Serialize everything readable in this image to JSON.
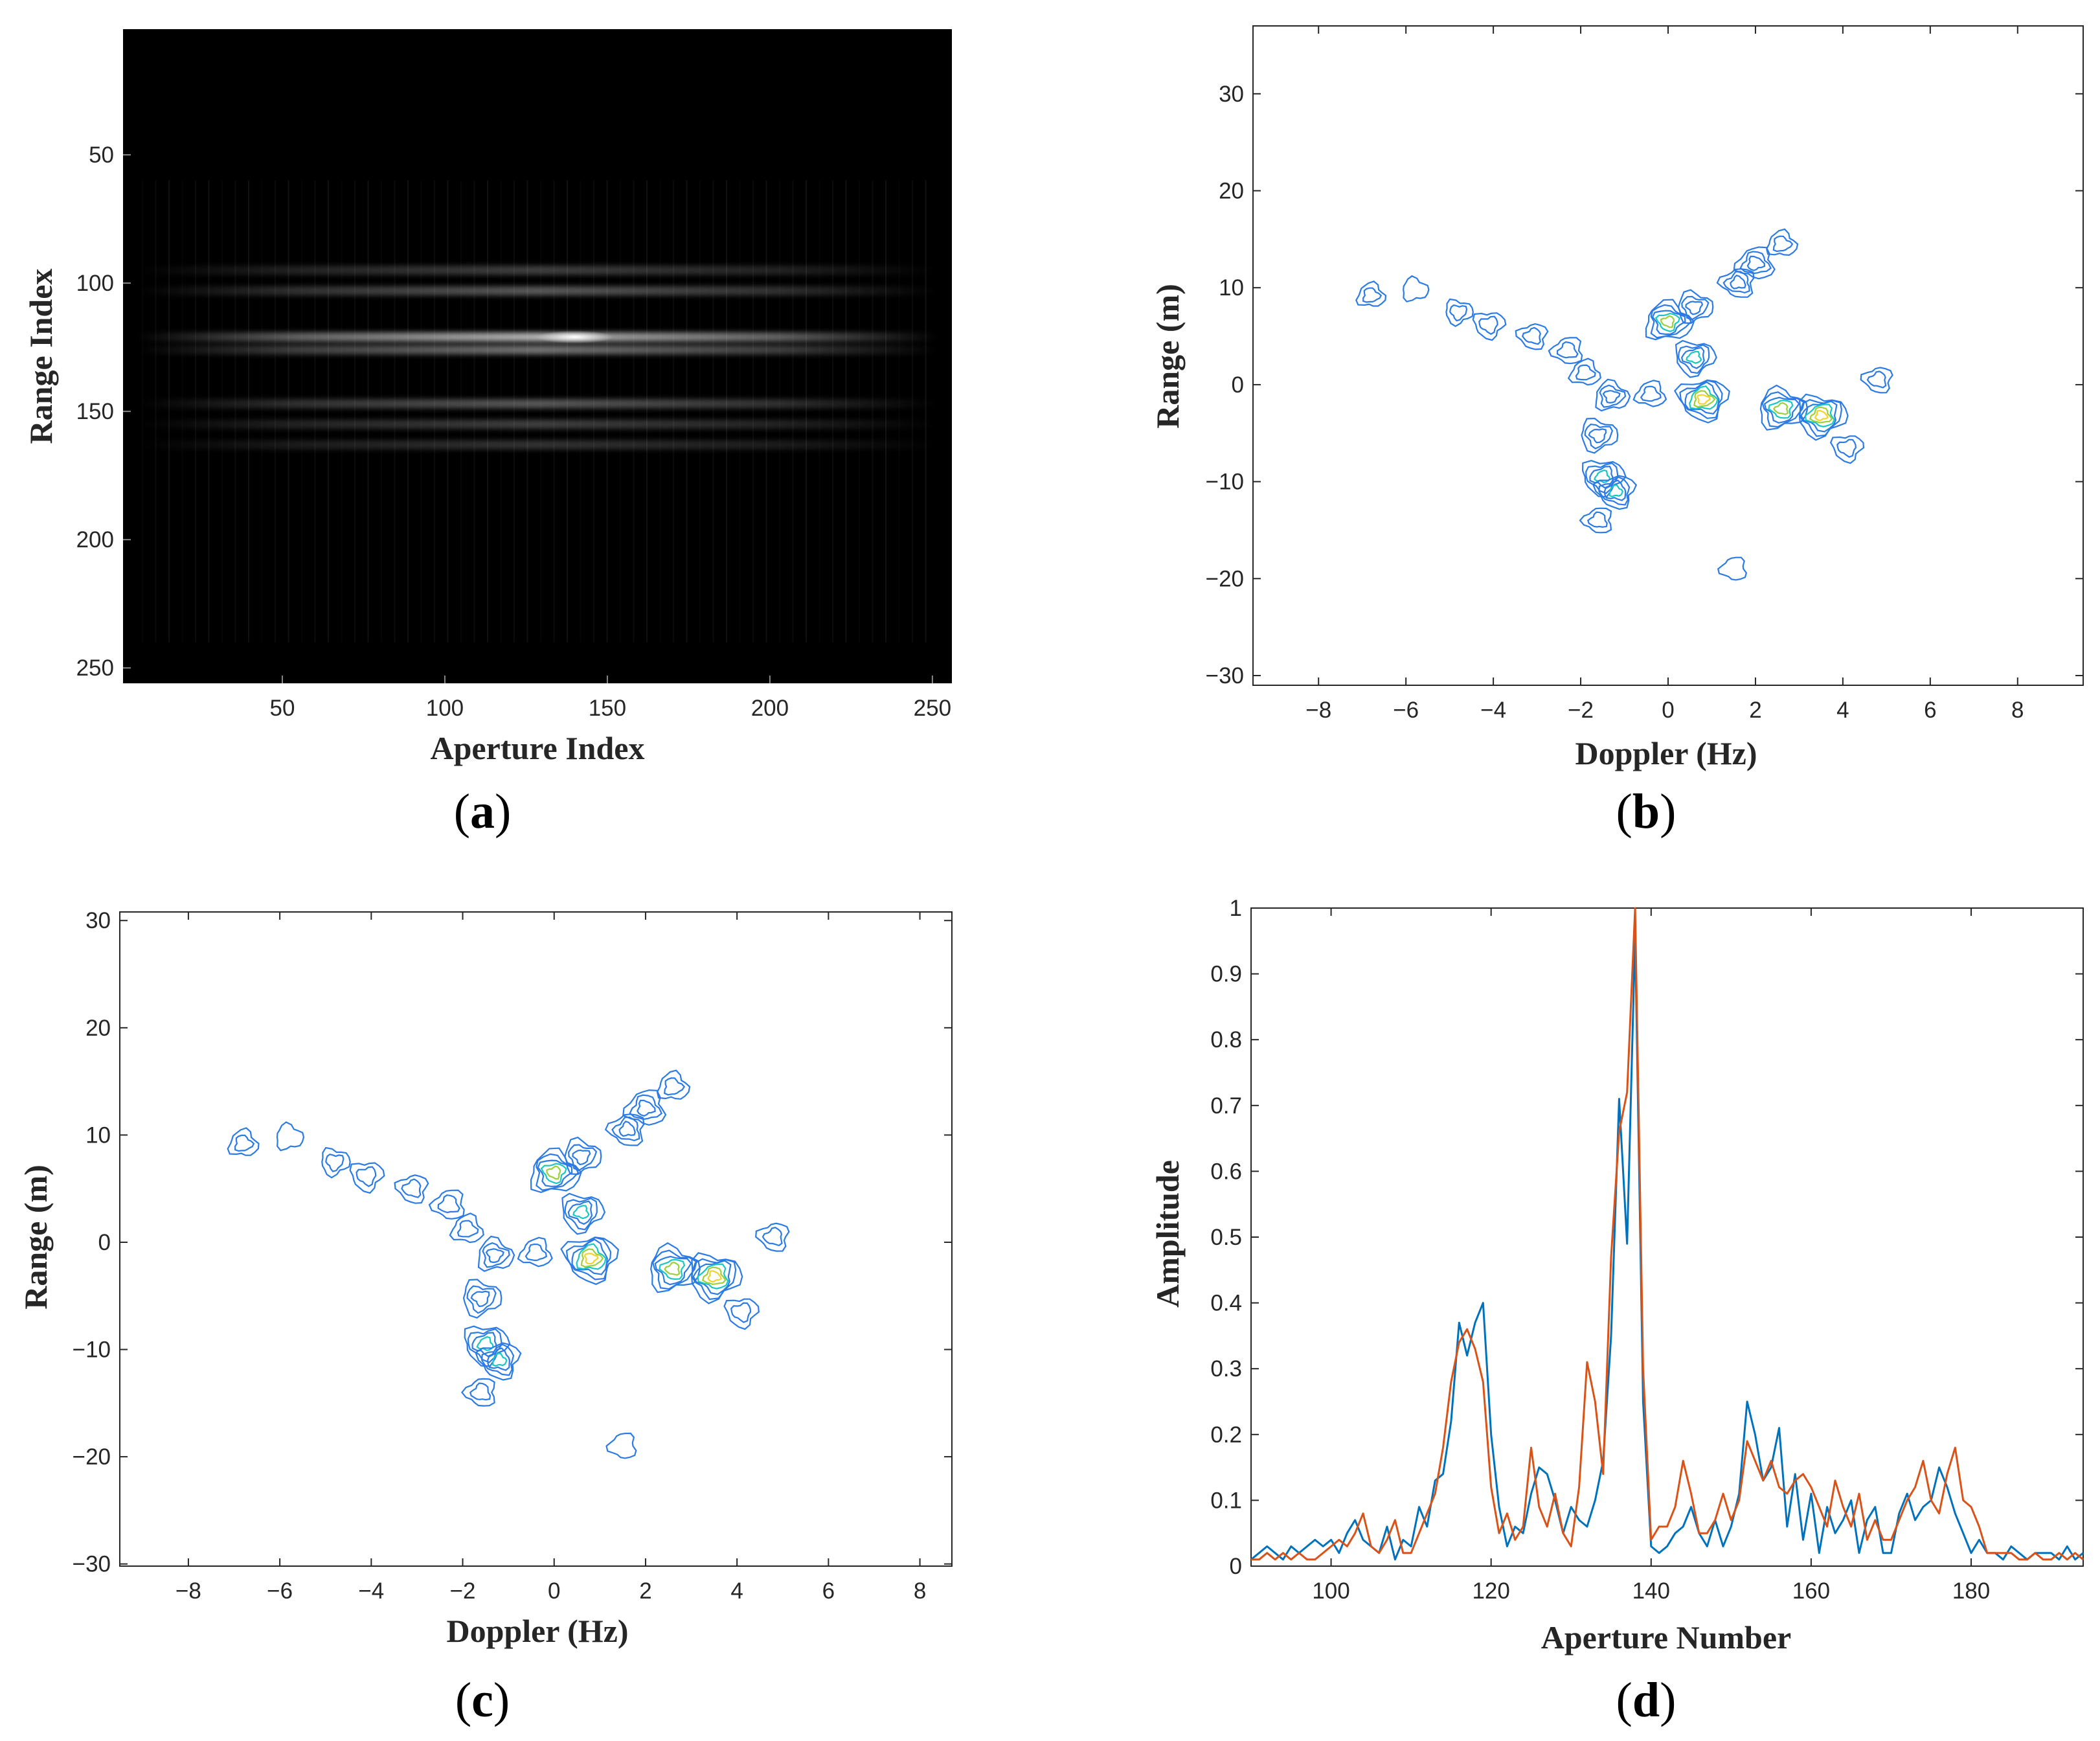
{
  "panels": {
    "a": "(a)",
    "b": "(b)",
    "c": "(c)",
    "d": "(d)"
  },
  "chart_data": [
    {
      "id": "a",
      "type": "heatmap",
      "title": "",
      "xlabel": "Aperture Index",
      "ylabel": "Range Index",
      "xlim": [
        1,
        256
      ],
      "ylim": [
        1,
        256
      ],
      "xticks": [
        50,
        100,
        150,
        200,
        250
      ],
      "yticks": [
        50,
        100,
        150,
        200,
        250
      ],
      "colormap": "gray",
      "bright_bands": [
        {
          "range_index": 95,
          "intensity": 0.25
        },
        {
          "range_index": 103,
          "intensity": 0.35
        },
        {
          "range_index": 121,
          "intensity": 0.7
        },
        {
          "range_index": 126,
          "intensity": 0.45
        },
        {
          "range_index": 147,
          "intensity": 0.35
        },
        {
          "range_index": 155,
          "intensity": 0.25
        },
        {
          "range_index": 163,
          "intensity": 0.2
        }
      ],
      "peak": {
        "aperture_index": 140,
        "range_index": 121
      }
    },
    {
      "id": "b",
      "type": "contour",
      "title": "",
      "xlabel": "Doppler (Hz)",
      "ylabel": "Range (m)",
      "xlim": [
        -9.5,
        9.5
      ],
      "ylim": [
        -31,
        37
      ],
      "xticks": [
        -8,
        -6,
        -4,
        -2,
        0,
        2,
        4,
        6,
        8
      ],
      "yticks": [
        -30,
        -20,
        -10,
        0,
        10,
        20,
        30
      ],
      "scatterers": [
        {
          "doppler": -6.8,
          "range": 9.2,
          "amp": 0.25
        },
        {
          "doppler": -5.8,
          "range": 9.8,
          "amp": 0.2
        },
        {
          "doppler": -4.8,
          "range": 7.5,
          "amp": 0.25
        },
        {
          "doppler": -4.1,
          "range": 6.2,
          "amp": 0.35
        },
        {
          "doppler": -3.1,
          "range": 5.0,
          "amp": 0.3
        },
        {
          "doppler": -2.3,
          "range": 3.5,
          "amp": 0.35
        },
        {
          "doppler": -1.9,
          "range": 1.2,
          "amp": 0.3
        },
        {
          "doppler": -1.3,
          "range": -1.2,
          "amp": 0.45
        },
        {
          "doppler": -1.6,
          "range": -5.2,
          "amp": 0.55
        },
        {
          "doppler": -1.5,
          "range": -9.5,
          "amp": 0.7
        },
        {
          "doppler": -1.2,
          "range": -11.0,
          "amp": 0.6
        },
        {
          "doppler": -1.6,
          "range": -14.0,
          "amp": 0.3
        },
        {
          "doppler": -0.4,
          "range": -1.0,
          "amp": 0.3
        },
        {
          "doppler": 0.0,
          "range": 6.5,
          "amp": 0.85
        },
        {
          "doppler": 0.6,
          "range": 8.0,
          "amp": 0.5
        },
        {
          "doppler": 0.6,
          "range": 2.8,
          "amp": 0.65
        },
        {
          "doppler": 0.8,
          "range": -1.5,
          "amp": 0.95
        },
        {
          "doppler": 1.6,
          "range": 10.5,
          "amp": 0.45
        },
        {
          "doppler": 2.0,
          "range": 12.5,
          "amp": 0.55
        },
        {
          "doppler": 2.6,
          "range": 14.5,
          "amp": 0.3
        },
        {
          "doppler": 2.6,
          "range": -2.5,
          "amp": 0.9
        },
        {
          "doppler": 3.5,
          "range": -3.2,
          "amp": 0.95
        },
        {
          "doppler": 4.1,
          "range": -6.5,
          "amp": 0.35
        },
        {
          "doppler": 4.8,
          "range": 0.5,
          "amp": 0.3
        },
        {
          "doppler": 1.5,
          "range": -19.0,
          "amp": 0.2
        }
      ]
    },
    {
      "id": "c",
      "type": "contour",
      "title": "",
      "xlabel": "Doppler (Hz)",
      "ylabel": "Range (m)",
      "xlim": [
        -9.5,
        8.7
      ],
      "ylim": [
        -30.2,
        30.8
      ],
      "xticks": [
        -8,
        -6,
        -4,
        -2,
        0,
        2,
        4,
        6,
        8
      ],
      "yticks": [
        -30,
        -20,
        -10,
        0,
        10,
        20,
        30
      ],
      "scatterers": [
        {
          "doppler": -6.8,
          "range": 9.2,
          "amp": 0.25
        },
        {
          "doppler": -5.8,
          "range": 9.8,
          "amp": 0.2
        },
        {
          "doppler": -4.8,
          "range": 7.5,
          "amp": 0.25
        },
        {
          "doppler": -4.1,
          "range": 6.2,
          "amp": 0.35
        },
        {
          "doppler": -3.1,
          "range": 5.0,
          "amp": 0.3
        },
        {
          "doppler": -2.3,
          "range": 3.5,
          "amp": 0.35
        },
        {
          "doppler": -1.9,
          "range": 1.2,
          "amp": 0.3
        },
        {
          "doppler": -1.3,
          "range": -1.2,
          "amp": 0.45
        },
        {
          "doppler": -1.6,
          "range": -5.2,
          "amp": 0.55
        },
        {
          "doppler": -1.5,
          "range": -9.5,
          "amp": 0.7
        },
        {
          "doppler": -1.2,
          "range": -11.0,
          "amp": 0.6
        },
        {
          "doppler": -1.6,
          "range": -14.0,
          "amp": 0.3
        },
        {
          "doppler": -0.4,
          "range": -1.0,
          "amp": 0.3
        },
        {
          "doppler": 0.0,
          "range": 6.5,
          "amp": 0.85
        },
        {
          "doppler": 0.6,
          "range": 8.0,
          "amp": 0.5
        },
        {
          "doppler": 0.6,
          "range": 2.8,
          "amp": 0.65
        },
        {
          "doppler": 0.8,
          "range": -1.5,
          "amp": 0.95
        },
        {
          "doppler": 1.6,
          "range": 10.5,
          "amp": 0.45
        },
        {
          "doppler": 2.0,
          "range": 12.5,
          "amp": 0.55
        },
        {
          "doppler": 2.6,
          "range": 14.5,
          "amp": 0.3
        },
        {
          "doppler": 2.6,
          "range": -2.5,
          "amp": 0.9
        },
        {
          "doppler": 3.5,
          "range": -3.2,
          "amp": 0.95
        },
        {
          "doppler": 4.1,
          "range": -6.5,
          "amp": 0.35
        },
        {
          "doppler": 4.8,
          "range": 0.5,
          "amp": 0.3
        },
        {
          "doppler": 1.5,
          "range": -19.0,
          "amp": 0.2
        }
      ]
    },
    {
      "id": "d",
      "type": "line",
      "title": "",
      "xlabel": "Aperture Number",
      "ylabel": "Amplitude",
      "xlim": [
        90,
        194
      ],
      "ylim": [
        0,
        1
      ],
      "xticks": [
        100,
        120,
        140,
        160,
        180
      ],
      "yticks": [
        0,
        0.1,
        0.2,
        0.3,
        0.4,
        0.5,
        0.6,
        0.7,
        0.8,
        0.9,
        1
      ],
      "x": [
        90,
        91,
        92,
        93,
        94,
        95,
        96,
        97,
        98,
        99,
        100,
        101,
        102,
        103,
        104,
        105,
        106,
        107,
        108,
        109,
        110,
        111,
        112,
        113,
        114,
        115,
        116,
        117,
        118,
        119,
        120,
        121,
        122,
        123,
        124,
        125,
        126,
        127,
        128,
        129,
        130,
        131,
        132,
        133,
        134,
        135,
        136,
        137,
        138,
        139,
        140,
        141,
        142,
        143,
        144,
        145,
        146,
        147,
        148,
        149,
        150,
        151,
        152,
        153,
        154,
        155,
        156,
        157,
        158,
        159,
        160,
        161,
        162,
        163,
        164,
        165,
        166,
        167,
        168,
        169,
        170,
        171,
        172,
        173,
        174,
        175,
        176,
        177,
        178,
        179,
        180,
        181,
        182,
        183,
        184,
        185,
        186,
        187,
        188,
        189,
        190,
        191,
        192,
        193,
        194
      ],
      "series": [
        {
          "name": "blue",
          "color": "#0072BD",
          "values": [
            0.01,
            0.02,
            0.03,
            0.02,
            0.01,
            0.03,
            0.02,
            0.03,
            0.04,
            0.03,
            0.04,
            0.02,
            0.05,
            0.07,
            0.04,
            0.03,
            0.02,
            0.06,
            0.01,
            0.04,
            0.03,
            0.09,
            0.06,
            0.13,
            0.14,
            0.22,
            0.37,
            0.32,
            0.37,
            0.4,
            0.2,
            0.09,
            0.03,
            0.06,
            0.05,
            0.11,
            0.15,
            0.14,
            0.1,
            0.05,
            0.09,
            0.07,
            0.06,
            0.1,
            0.16,
            0.35,
            0.71,
            0.49,
            0.96,
            0.25,
            0.03,
            0.02,
            0.03,
            0.05,
            0.06,
            0.09,
            0.05,
            0.03,
            0.07,
            0.03,
            0.06,
            0.11,
            0.25,
            0.2,
            0.13,
            0.15,
            0.21,
            0.06,
            0.14,
            0.04,
            0.11,
            0.02,
            0.09,
            0.05,
            0.07,
            0.1,
            0.02,
            0.07,
            0.09,
            0.02,
            0.02,
            0.08,
            0.11,
            0.07,
            0.09,
            0.1,
            0.15,
            0.12,
            0.08,
            0.05,
            0.02,
            0.04,
            0.02,
            0.02,
            0.01,
            0.03,
            0.02,
            0.01,
            0.02,
            0.02,
            0.02,
            0.01,
            0.03,
            0.01,
            0.02
          ]
        },
        {
          "name": "orange",
          "color": "#D95319",
          "values": [
            0.01,
            0.01,
            0.02,
            0.01,
            0.02,
            0.01,
            0.02,
            0.01,
            0.01,
            0.02,
            0.03,
            0.04,
            0.03,
            0.05,
            0.08,
            0.03,
            0.02,
            0.04,
            0.07,
            0.02,
            0.02,
            0.05,
            0.08,
            0.11,
            0.18,
            0.28,
            0.34,
            0.36,
            0.33,
            0.28,
            0.12,
            0.05,
            0.08,
            0.04,
            0.06,
            0.18,
            0.09,
            0.06,
            0.11,
            0.05,
            0.03,
            0.12,
            0.31,
            0.25,
            0.14,
            0.47,
            0.66,
            0.72,
            1.0,
            0.3,
            0.04,
            0.06,
            0.06,
            0.09,
            0.16,
            0.11,
            0.05,
            0.05,
            0.07,
            0.11,
            0.07,
            0.1,
            0.19,
            0.16,
            0.13,
            0.16,
            0.12,
            0.11,
            0.13,
            0.14,
            0.12,
            0.09,
            0.06,
            0.13,
            0.09,
            0.06,
            0.11,
            0.04,
            0.07,
            0.04,
            0.04,
            0.07,
            0.1,
            0.12,
            0.16,
            0.1,
            0.08,
            0.14,
            0.18,
            0.1,
            0.09,
            0.06,
            0.02,
            0.02,
            0.02,
            0.02,
            0.01,
            0.01,
            0.02,
            0.01,
            0.01,
            0.02,
            0.01,
            0.02,
            0.01
          ]
        }
      ]
    }
  ]
}
